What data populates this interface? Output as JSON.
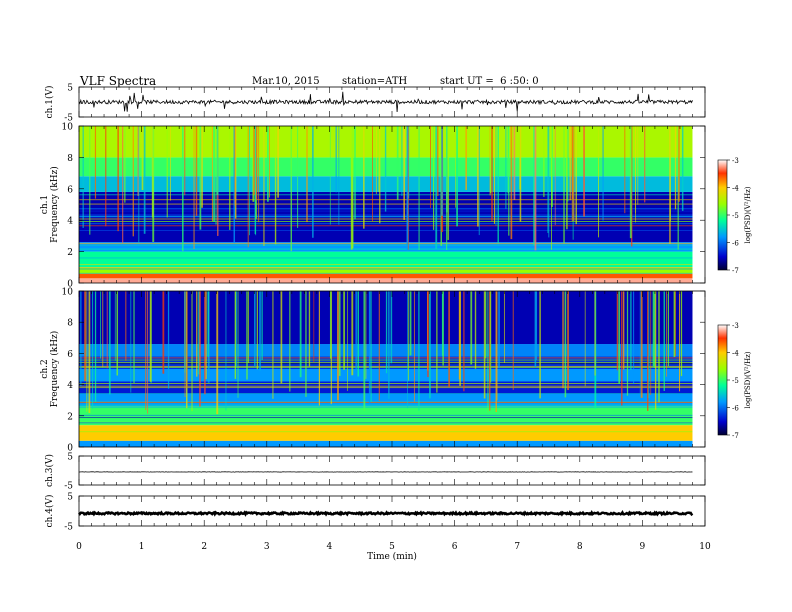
{
  "header": {
    "title": "VLF Spectra",
    "date": "Mar.10, 2015",
    "station": "station=ATH",
    "start": "start UT =  6 :50: 0"
  },
  "chart_data": [
    {
      "type": "line",
      "panel": "ch1-waveform",
      "ylabel": "ch.1(V)",
      "ylim": [
        -5,
        5
      ],
      "yticks": [
        "5",
        "-5"
      ],
      "xlim": [
        0,
        9.8
      ],
      "baseline": 0,
      "noise_amplitude": 0.6,
      "spike_amplitude": 3.5
    },
    {
      "type": "heatmap",
      "panel": "ch1-spectrogram",
      "ylabel": "ch.1 Frequency (kHz)",
      "ylim": [
        0,
        10
      ],
      "yticks": [
        "0",
        "2",
        "4",
        "6",
        "8",
        "10"
      ],
      "xlim": [
        0,
        9.8
      ],
      "colorbar": {
        "label": "log(PSD)(V²/Hz)",
        "range": [
          -7,
          -3
        ],
        "ticks": [
          "-3",
          "-4",
          "-5",
          "-6",
          "-7"
        ]
      },
      "bands": [
        {
          "from": 0,
          "to": 0.3,
          "log_psd": -3.2
        },
        {
          "from": 0.3,
          "to": 0.6,
          "log_psd": -3.6
        },
        {
          "from": 0.6,
          "to": 1.0,
          "log_psd": -4.6
        },
        {
          "from": 1.0,
          "to": 2.0,
          "log_psd": -5.2
        },
        {
          "from": 2.0,
          "to": 2.6,
          "log_psd": -5.8
        },
        {
          "from": 2.6,
          "to": 5.8,
          "log_psd": -6.6
        },
        {
          "from": 5.8,
          "to": 6.8,
          "log_psd": -5.6
        },
        {
          "from": 6.8,
          "to": 8.0,
          "log_psd": -5.0
        },
        {
          "from": 8.0,
          "to": 10.0,
          "log_psd": -4.5
        }
      ]
    },
    {
      "type": "heatmap",
      "panel": "ch2-spectrogram",
      "ylabel": "ch.2 Frequency (kHz)",
      "ylim": [
        0,
        10
      ],
      "yticks": [
        "0",
        "2",
        "4",
        "6",
        "8",
        "10"
      ],
      "xlim": [
        0,
        9.8
      ],
      "colorbar": {
        "label": "log(PSD)(V²/Hz)",
        "range": [
          -7,
          -3
        ],
        "ticks": [
          "-3",
          "-4",
          "-5",
          "-6",
          "-7"
        ]
      },
      "bands": [
        {
          "from": 0,
          "to": 0.4,
          "log_psd": -5.8
        },
        {
          "from": 0.4,
          "to": 1.4,
          "log_psd": -4.0
        },
        {
          "from": 1.4,
          "to": 2.6,
          "log_psd": -5.0
        },
        {
          "from": 2.6,
          "to": 3.4,
          "log_psd": -5.8
        },
        {
          "from": 3.4,
          "to": 4.2,
          "log_psd": -6.4
        },
        {
          "from": 4.2,
          "to": 5.0,
          "log_psd": -5.8
        },
        {
          "from": 5.0,
          "to": 5.8,
          "log_psd": -6.3
        },
        {
          "from": 5.8,
          "to": 6.6,
          "log_psd": -5.9
        },
        {
          "from": 6.6,
          "to": 10.0,
          "log_psd": -6.6
        }
      ]
    },
    {
      "type": "line",
      "panel": "ch3-waveform",
      "ylabel": "ch.3(V)",
      "ylim": [
        -5,
        5
      ],
      "yticks": [
        "5",
        "-5"
      ],
      "xlim": [
        0,
        9.8
      ],
      "baseline": -0.5,
      "noise_amplitude": 0.05
    },
    {
      "type": "line",
      "panel": "ch4-waveform",
      "ylabel": "ch.4(V)",
      "ylim": [
        -5,
        5
      ],
      "yticks": [
        "5",
        "-5"
      ],
      "xlim": [
        0,
        9.8
      ],
      "baseline": -0.8,
      "noise_amplitude": 0.3
    }
  ],
  "x_axis": {
    "label": "Time (min)",
    "range": [
      0,
      10
    ],
    "ticks": [
      "0",
      "1",
      "2",
      "3",
      "4",
      "5",
      "6",
      "7",
      "8",
      "9",
      "10"
    ]
  }
}
